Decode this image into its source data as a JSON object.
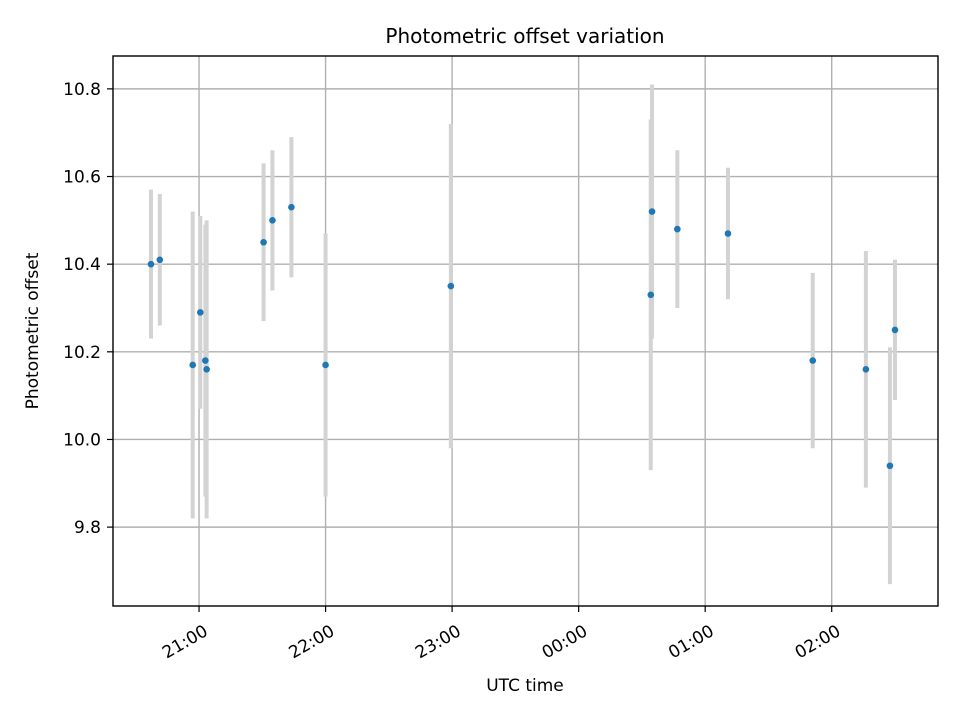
{
  "chart_data": {
    "type": "scatter",
    "title": "Photometric offset variation",
    "xlabel": "UTC time",
    "ylabel": "Photometric offset",
    "xlim_hours": [
      20.32,
      26.84
    ],
    "ylim": [
      9.62,
      10.875
    ],
    "x_ticks": [
      {
        "hour": 21,
        "label": "21:00"
      },
      {
        "hour": 22,
        "label": "22:00"
      },
      {
        "hour": 23,
        "label": "23:00"
      },
      {
        "hour": 24,
        "label": "00:00"
      },
      {
        "hour": 25,
        "label": "01:00"
      },
      {
        "hour": 26,
        "label": "02:00"
      }
    ],
    "y_ticks": [
      {
        "value": 9.8,
        "label": "9.8"
      },
      {
        "value": 10.0,
        "label": "10.0"
      },
      {
        "value": 10.2,
        "label": "10.2"
      },
      {
        "value": 10.4,
        "label": "10.4"
      },
      {
        "value": 10.6,
        "label": "10.6"
      },
      {
        "value": 10.8,
        "label": "10.8"
      }
    ],
    "grid": true,
    "marker_color": "#1f77b4",
    "errorbar_color": "#d3d3d3",
    "series": [
      {
        "points": [
          {
            "time": "20:37",
            "hour": 20.62,
            "y": 10.4,
            "err": 0.17
          },
          {
            "time": "20:42",
            "hour": 20.69,
            "y": 10.41,
            "err": 0.15
          },
          {
            "time": "20:57",
            "hour": 20.95,
            "y": 10.17,
            "err": 0.35
          },
          {
            "time": "21:01",
            "hour": 21.01,
            "y": 10.29,
            "err": 0.22
          },
          {
            "time": "21:03",
            "hour": 21.05,
            "y": 10.18,
            "err": 0.31
          },
          {
            "time": "21:04",
            "hour": 21.06,
            "y": 10.16,
            "err": 0.34
          },
          {
            "time": "21:31",
            "hour": 21.51,
            "y": 10.45,
            "err": 0.18
          },
          {
            "time": "21:35",
            "hour": 21.58,
            "y": 10.5,
            "err": 0.16
          },
          {
            "time": "21:44",
            "hour": 21.73,
            "y": 10.53,
            "err": 0.16
          },
          {
            "time": "22:00",
            "hour": 22.0,
            "y": 10.17,
            "err": 0.3
          },
          {
            "time": "22:59",
            "hour": 22.99,
            "y": 10.35,
            "err": 0.37
          },
          {
            "time": "00:34",
            "hour": 24.57,
            "y": 10.33,
            "err": 0.4
          },
          {
            "time": "00:35",
            "hour": 24.58,
            "y": 10.52,
            "err": 0.29
          },
          {
            "time": "00:47",
            "hour": 24.78,
            "y": 10.48,
            "err": 0.18
          },
          {
            "time": "01:11",
            "hour": 25.18,
            "y": 10.47,
            "err": 0.15
          },
          {
            "time": "01:51",
            "hour": 25.85,
            "y": 10.18,
            "err": 0.2
          },
          {
            "time": "02:16",
            "hour": 26.27,
            "y": 10.16,
            "err": 0.27
          },
          {
            "time": "02:28",
            "hour": 26.46,
            "y": 9.94,
            "err": 0.27
          },
          {
            "time": "02:30",
            "hour": 26.5,
            "y": 10.25,
            "err": 0.16
          }
        ]
      }
    ]
  }
}
